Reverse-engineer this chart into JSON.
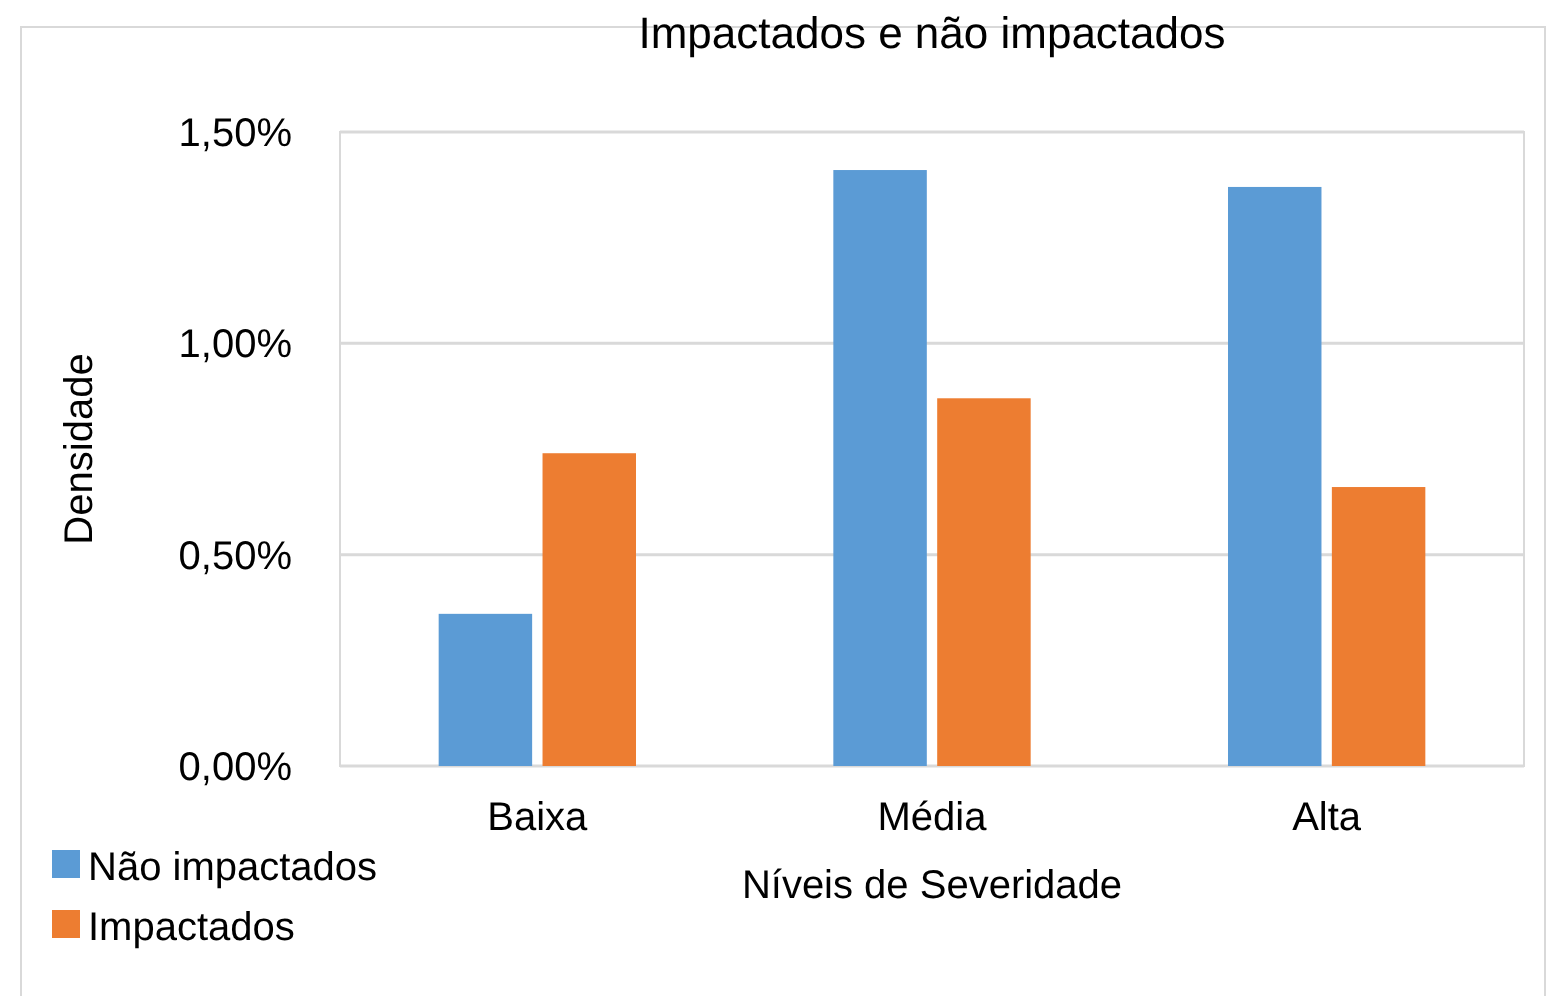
{
  "chart_data": {
    "type": "bar",
    "title": "Impactados e não impactados",
    "xlabel": "Níveis de Severidade",
    "ylabel": "Densidade",
    "categories": [
      "Baixa",
      "Média",
      "Alta"
    ],
    "series": [
      {
        "name": "Não impactados",
        "color": "#5b9bd5",
        "values": [
          0.36,
          1.41,
          1.37
        ]
      },
      {
        "name": "Impactados",
        "color": "#ed7d31",
        "values": [
          0.74,
          0.87,
          0.66
        ]
      }
    ],
    "ylim": [
      0,
      1.5
    ],
    "yticks": [
      {
        "value": 0,
        "label": "0,00%"
      },
      {
        "value": 0.5,
        "label": "0,50%"
      },
      {
        "value": 1,
        "label": "1,00%"
      },
      {
        "value": 1.5,
        "label": "1,50%"
      }
    ],
    "grid": "y",
    "legend": "bottom left"
  }
}
